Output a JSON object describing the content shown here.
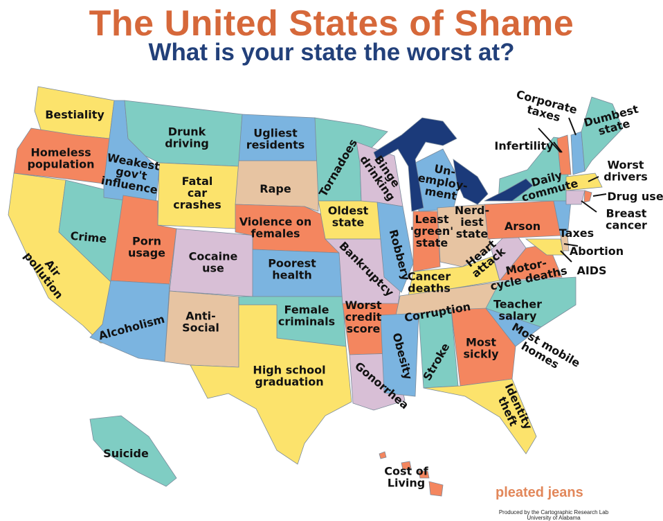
{
  "header": {
    "title": "The United States of Shame",
    "subtitle": "What is your state the worst at?"
  },
  "colors": {
    "yellow": "#fce36c",
    "teal": "#7fcdc3",
    "blue": "#7bb4e0",
    "salmon": "#f4865f",
    "tan": "#e7c4a2",
    "lavender": "#d8bfd6",
    "lakes": "#1b3a7a",
    "title": "#d6683a",
    "subtitle": "#22407a"
  },
  "labels": [
    [
      "Bestiality"
    ],
    [
      "Homeless",
      "population"
    ],
    [
      "Weakest",
      "gov't",
      "influence"
    ],
    [
      "Drunk",
      "driving"
    ],
    [
      "Ugliest",
      "residents"
    ],
    [
      "Tornadoes"
    ],
    [
      "Binge",
      "drinking"
    ],
    [
      "Un-",
      "employ-",
      "ment"
    ],
    [
      "Rape"
    ],
    [
      "Fatal",
      "car",
      "crashes"
    ],
    [
      "Oldest",
      "state"
    ],
    [
      "Violence on",
      "females"
    ],
    [
      "Crime"
    ],
    [
      "Porn",
      "usage"
    ],
    [
      "Cocaine",
      "use"
    ],
    [
      "Poorest",
      "health"
    ],
    [
      "Bankruptcy"
    ],
    [
      "Robbery"
    ],
    [
      "Least",
      "'green'",
      "state"
    ],
    [
      "Nerd-",
      "iest",
      "state"
    ],
    [
      "Heart",
      "attack"
    ],
    [
      "Motor-",
      "cycle deaths"
    ],
    [
      "Arson"
    ],
    [
      "Cancer",
      "deaths"
    ],
    [
      "Corruption"
    ],
    [
      "Teacher",
      "salary"
    ],
    [
      "Air",
      "pollution"
    ],
    [
      "Alcoholism"
    ],
    [
      "Anti-",
      "Social"
    ],
    [
      "Female",
      "criminals"
    ],
    [
      "Worst",
      "credit",
      "score"
    ],
    [
      "Obesity"
    ],
    [
      "Stroke"
    ],
    [
      "Most",
      "sickly"
    ],
    [
      "Most mobile",
      "homes"
    ],
    [
      "High school",
      "graduation"
    ],
    [
      "Gonorrhea"
    ],
    [
      "Identity",
      "theft"
    ],
    [
      "Suicide"
    ],
    [
      "Cost of",
      "Living"
    ],
    [
      "Corporate",
      "taxes"
    ],
    [
      "Dumbest",
      "state"
    ],
    [
      "Infertility"
    ],
    [
      "Daily",
      "commute"
    ],
    [
      "Worst",
      "drivers"
    ],
    [
      "Drug use"
    ],
    [
      "Breast",
      "cancer"
    ],
    [
      "Taxes"
    ],
    [
      "Abortion"
    ],
    [
      "AIDS"
    ]
  ],
  "logo": {
    "brand": "pleated jeans",
    "credit_line1": "Produced by the Cartographic Research Lab",
    "credit_line2": "University of Alabama"
  }
}
